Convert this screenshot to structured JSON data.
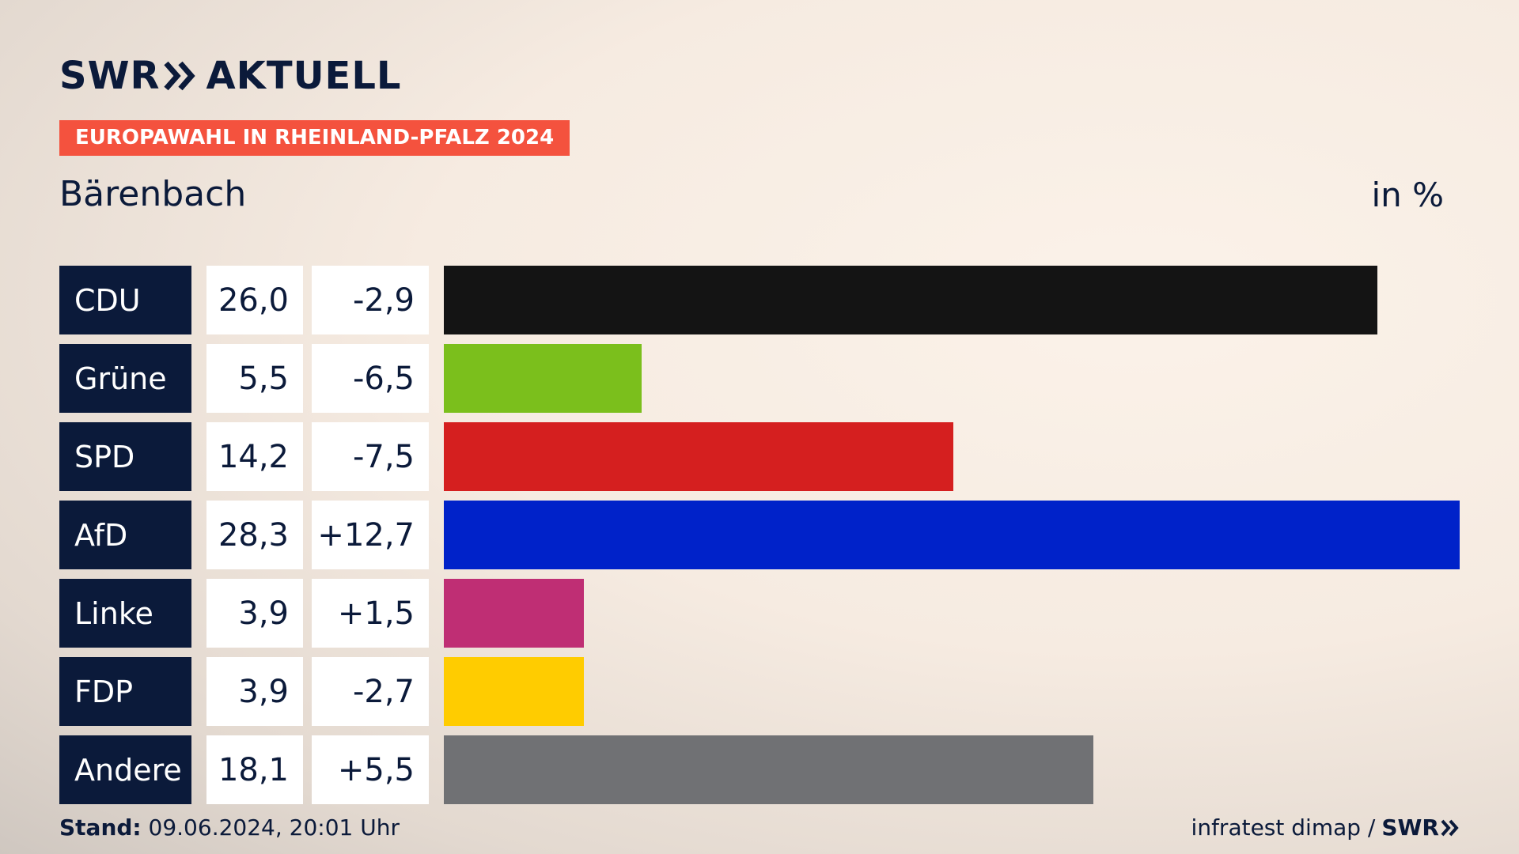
{
  "header": {
    "logo_left": "SWR",
    "logo_right": "AKTUELL",
    "badge": "EUROPAWAHL IN RHEINLAND-PFALZ 2024",
    "region": "Bärenbach",
    "unit": "in %"
  },
  "footer": {
    "stand_label": "Stand:",
    "stand_value": "09.06.2024, 20:01 Uhr",
    "source": "infratest dimap /",
    "source_logo": "SWR"
  },
  "chart_data": {
    "type": "bar",
    "orientation": "horizontal",
    "title": "Bärenbach",
    "unit": "in %",
    "categories": [
      "CDU",
      "Grüne",
      "SPD",
      "AfD",
      "Linke",
      "FDP",
      "Andere"
    ],
    "values": [
      26.0,
      5.5,
      14.2,
      28.3,
      3.9,
      3.9,
      18.1
    ],
    "values_label": [
      "26,0",
      "5,5",
      "14,2",
      "28,3",
      "3,9",
      "3,9",
      "18,1"
    ],
    "diff_label": [
      "-2,9",
      "-6,5",
      "-7,5",
      "+12,7",
      "+1,5",
      "-2,7",
      "+5,5"
    ],
    "diff": [
      -2.9,
      -6.5,
      -7.5,
      12.7,
      1.5,
      -2.7,
      5.5
    ],
    "colors": [
      "#141414",
      "#7bbf1c",
      "#d51f1f",
      "#0022c9",
      "#bf2e74",
      "#ffcc00",
      "#707174"
    ],
    "xlim": [
      0,
      28.3
    ]
  }
}
